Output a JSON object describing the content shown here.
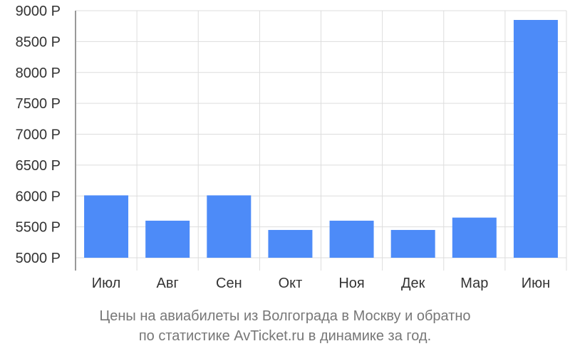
{
  "chart_data": {
    "type": "bar",
    "categories": [
      "Июл",
      "Авг",
      "Сен",
      "Окт",
      "Ноя",
      "Дек",
      "Мар",
      "Июн"
    ],
    "values": [
      6010,
      5600,
      6010,
      5450,
      5600,
      5450,
      5650,
      8850
    ],
    "ylim": [
      5000,
      9000
    ],
    "yticks": [
      5000,
      5500,
      6000,
      6500,
      7000,
      7500,
      8000,
      8500,
      9000
    ],
    "ytick_labels": [
      "5000 Р",
      "5500 Р",
      "6000 Р",
      "6500 Р",
      "7000 Р",
      "7500 Р",
      "8000 Р",
      "8500 Р",
      "9000 Р"
    ],
    "grid": true,
    "bar_color": "#4d8bf8",
    "caption": [
      "Цены на авиабилеты из Волгограда в Москву и обратно",
      "по статистике AvTicket.ru в динамике за год."
    ]
  }
}
